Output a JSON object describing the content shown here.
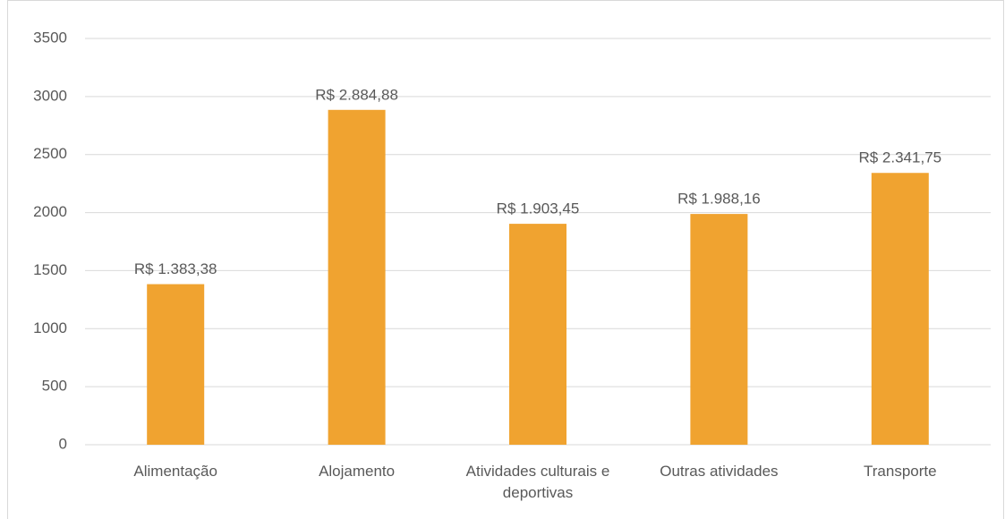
{
  "chart_data": {
    "type": "bar",
    "categories": [
      "Alimentação",
      "Alojamento",
      "Atividades culturais e deportivas",
      "Outras atividades",
      "Transporte"
    ],
    "values": [
      1383.38,
      2884.88,
      1903.45,
      1988.16,
      2341.75
    ],
    "value_labels": [
      "R$ 1.383,38",
      "R$ 2.884,88",
      "R$ 1.903,45",
      "R$ 1.988,16",
      "R$ 2.341,75"
    ],
    "color": "#f0a330",
    "ylim": [
      0,
      3500
    ],
    "yticks": [
      0,
      500,
      1000,
      1500,
      2000,
      2500,
      3000,
      3500
    ],
    "grid": true
  }
}
